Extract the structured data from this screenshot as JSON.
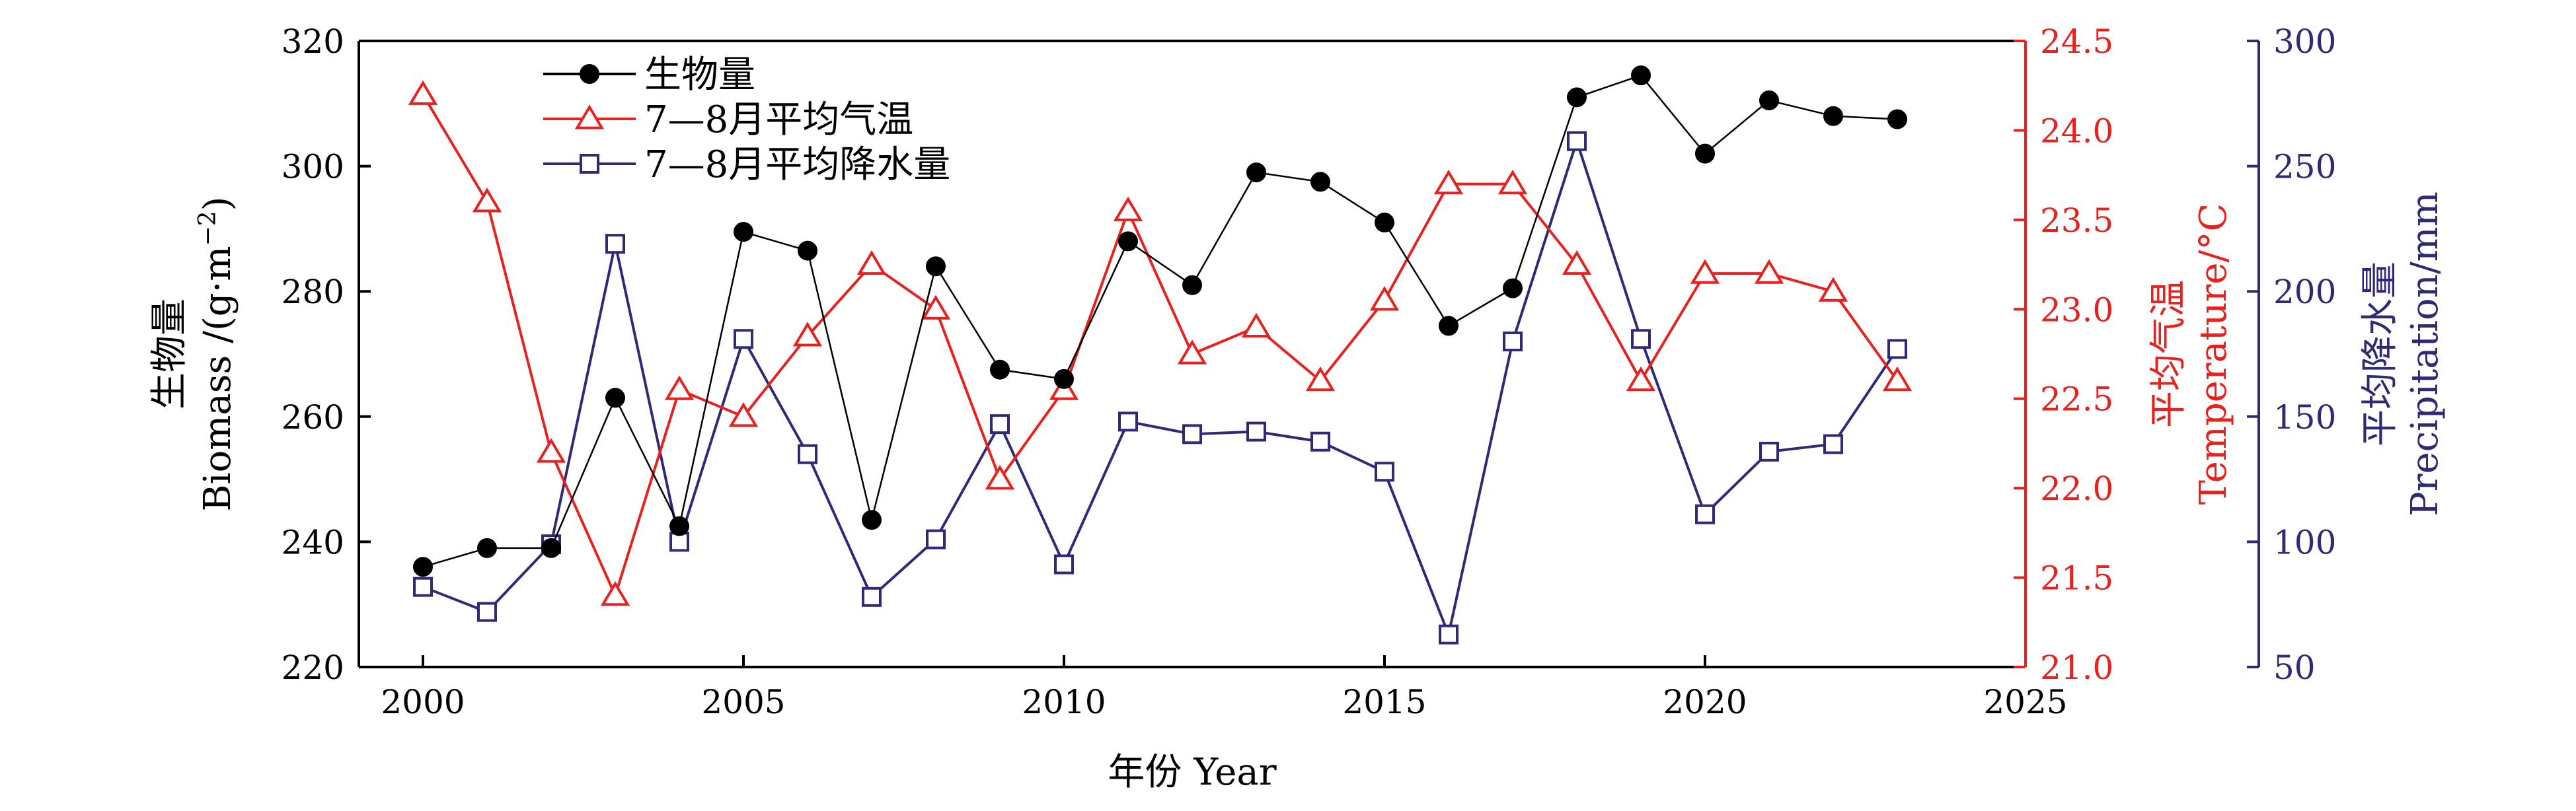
{
  "chart_data": {
    "type": "line",
    "x": [
      2000,
      2001,
      2002,
      2003,
      2004,
      2005,
      2006,
      2007,
      2008,
      2009,
      2010,
      2011,
      2012,
      2013,
      2014,
      2015,
      2016,
      2017,
      2018,
      2019,
      2020,
      2021,
      2022,
      2023
    ],
    "xlabel": "年份 Year",
    "xlim": [
      1999,
      2025
    ],
    "xticks": [
      "2000",
      "2005",
      "2010",
      "2015",
      "2020",
      "2025"
    ],
    "grid": false,
    "legend_position": "top-left",
    "axes": {
      "left": {
        "label_cn": "生物量",
        "label_en": "Biomass /(g·m",
        "label_sup": "−2",
        "label_tail": ")",
        "ylim": [
          220,
          320
        ],
        "ticks": [
          "220",
          "240",
          "260",
          "280",
          "300",
          "320"
        ],
        "color": "#000000"
      },
      "right1": {
        "label_cn": "平均气温",
        "label_en": "Temperature/°C",
        "ylim": [
          21.0,
          24.5
        ],
        "ticks": [
          "21.0",
          "21.5",
          "22.0",
          "22.5",
          "23.0",
          "23.5",
          "24.0",
          "24.5"
        ],
        "color": "#e8211e"
      },
      "right2": {
        "label_cn": "平均降水量",
        "label_en": "Precipitation/mm",
        "ylim": [
          50,
          300
        ],
        "ticks": [
          "50",
          "100",
          "150",
          "200",
          "250",
          "300"
        ],
        "color": "#2e2a78"
      }
    },
    "series": [
      {
        "name": "生物量",
        "axis": "left",
        "color": "#000000",
        "marker": "filled-circle",
        "values": [
          236,
          239,
          239,
          263,
          242.5,
          289.5,
          286.5,
          243.5,
          284,
          267.5,
          266,
          288,
          281,
          299,
          297.5,
          291,
          274.5,
          280.5,
          311,
          314.5,
          302,
          310.5,
          308,
          307.5
        ]
      },
      {
        "name": "7—8月平均气温",
        "axis": "right1",
        "color": "#e8211e",
        "marker": "open-triangle",
        "values": [
          24.2,
          23.6,
          22.2,
          21.4,
          22.55,
          22.4,
          22.85,
          23.25,
          23.0,
          22.05,
          22.55,
          23.55,
          22.75,
          22.9,
          22.6,
          23.05,
          23.7,
          23.7,
          23.25,
          22.6,
          23.2,
          23.2,
          23.1,
          22.6
        ]
      },
      {
        "name": "7—8月平均降水量",
        "axis": "right2",
        "color": "#2e2a78",
        "marker": "open-square",
        "values": [
          82,
          72,
          99,
          219,
          100,
          181,
          135,
          78,
          101,
          147,
          91,
          148,
          143,
          144,
          140,
          128,
          63,
          180,
          260,
          181,
          111,
          136,
          139,
          177
        ]
      }
    ]
  }
}
